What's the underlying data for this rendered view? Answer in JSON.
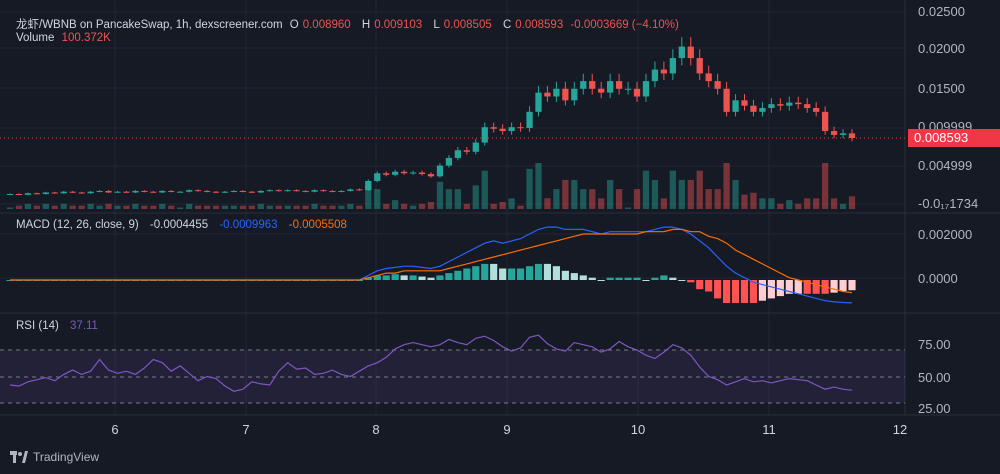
{
  "header": {
    "symbol": "龙虾/WBNB on PancakeSwap, 1h, dexscreener.com",
    "o_label": "O",
    "o_value": "0.008960",
    "h_label": "H",
    "h_value": "0.009103",
    "l_label": "L",
    "l_value": "0.008505",
    "c_label": "C",
    "c_value": "0.008593",
    "change": "-0.0003669 (−4.10%)",
    "volume_label": "Volume",
    "volume_value": "100.372K"
  },
  "macd": {
    "label": "MACD (12, 26, close, 9)",
    "hist_value": "-0.0004455",
    "macd_value": "-0.0009963",
    "signal_value": "-0.0005508"
  },
  "rsi": {
    "label": "RSI (14)",
    "value": "37.11"
  },
  "price_axis": [
    "0.02500",
    "0.02000",
    "0.01500",
    "0.009999",
    "0.004999",
    "-0.0₁₇1734"
  ],
  "current_price": "0.008593",
  "macd_axis": [
    "0.002000",
    "0.0000"
  ],
  "rsi_axis": [
    "75.00",
    "50.00",
    "25.00"
  ],
  "time_axis": [
    "6",
    "7",
    "8",
    "9",
    "10",
    "11",
    "12"
  ],
  "brand": "TradingView",
  "colors": {
    "up": "#26a69a",
    "down": "#ef5350",
    "macd_line": "#2962ff",
    "signal_line": "#ff6d00",
    "rsi_line": "#7e57c2",
    "price_tag": "#f23645"
  },
  "chart_data": [
    {
      "type": "candlestick",
      "title": "龙虾/WBNB on PancakeSwap, 1h, dexscreener.com",
      "x_labels": [
        "6",
        "7",
        "8",
        "9",
        "10",
        "11",
        "12"
      ],
      "ylim": [
        0,
        0.025
      ],
      "close": [
        0.0013,
        0.0012,
        0.0014,
        0.0013,
        0.0015,
        0.0014,
        0.0016,
        0.0015,
        0.0014,
        0.0016,
        0.0017,
        0.0015,
        0.0016,
        0.0015,
        0.0017,
        0.0016,
        0.0015,
        0.0017,
        0.0016,
        0.0016,
        0.0018,
        0.0017,
        0.0016,
        0.0015,
        0.0016,
        0.0017,
        0.0016,
        0.0015,
        0.0017,
        0.0018,
        0.0017,
        0.0018,
        0.0017,
        0.0016,
        0.0018,
        0.0017,
        0.0016,
        0.0017,
        0.0019,
        0.0018,
        0.003,
        0.004,
        0.0038,
        0.0042,
        0.004,
        0.0041,
        0.0039,
        0.0036,
        0.005,
        0.006,
        0.007,
        0.0068,
        0.008,
        0.01,
        0.0098,
        0.0095,
        0.01,
        0.0099,
        0.012,
        0.0145,
        0.014,
        0.015,
        0.0135,
        0.015,
        0.016,
        0.015,
        0.0145,
        0.016,
        0.015,
        0.015,
        0.014,
        0.016,
        0.0175,
        0.017,
        0.019,
        0.0205,
        0.019,
        0.017,
        0.016,
        0.015,
        0.012,
        0.0135,
        0.0128,
        0.012,
        0.0125,
        0.013,
        0.0128,
        0.0132,
        0.013,
        0.0125,
        0.012,
        0.0095,
        0.009,
        0.0092,
        0.008593
      ],
      "volume_peak": 100372
    },
    {
      "type": "line",
      "title": "MACD (12, 26, close, 9)",
      "ylim": [
        -0.0012,
        0.0028
      ],
      "series": [
        {
          "name": "MACD",
          "values": [
            0,
            0,
            0,
            0,
            0,
            0,
            0,
            0,
            0,
            0,
            0,
            0,
            0,
            0,
            0,
            0,
            0,
            0,
            0,
            0,
            0,
            0,
            0,
            0,
            0,
            0,
            0,
            0,
            0,
            0,
            0,
            0,
            0,
            0,
            0,
            0,
            0,
            0,
            0,
            0,
            0.0002,
            0.0004,
            0.0005,
            0.00055,
            0.0006,
            0.0006,
            0.00055,
            0.0005,
            0.0006,
            0.0008,
            0.001,
            0.0012,
            0.0014,
            0.0016,
            0.0017,
            0.0016,
            0.0017,
            0.0018,
            0.002,
            0.0022,
            0.0023,
            0.0023,
            0.0022,
            0.0022,
            0.0022,
            0.0021,
            0.002,
            0.0021,
            0.0021,
            0.0021,
            0.0021,
            0.0021,
            0.0022,
            0.0023,
            0.0023,
            0.0022,
            0.002,
            0.0017,
            0.0014,
            0.001,
            0.0006,
            0.0003,
            0.0001,
            -0.0001,
            -0.0002,
            -0.0003,
            -0.0004,
            -0.0005,
            -0.0006,
            -0.0007,
            -0.0008,
            -0.0009,
            -0.00095,
            -0.00098,
            -0.0009963
          ]
        },
        {
          "name": "Signal",
          "values": [
            0,
            0,
            0,
            0,
            0,
            0,
            0,
            0,
            0,
            0,
            0,
            0,
            0,
            0,
            0,
            0,
            0,
            0,
            0,
            0,
            0,
            0,
            0,
            0,
            0,
            0,
            0,
            0,
            0,
            0,
            0,
            0,
            0,
            0,
            0,
            0,
            0,
            0,
            0,
            0,
            0.0001,
            0.0002,
            0.0003,
            0.0003,
            0.0004,
            0.0004,
            0.0004,
            0.0004,
            0.0004,
            0.0005,
            0.0006,
            0.0007,
            0.0008,
            0.0009,
            0.001,
            0.0011,
            0.0012,
            0.0013,
            0.0014,
            0.0015,
            0.0016,
            0.0017,
            0.0018,
            0.0019,
            0.002,
            0.002,
            0.002,
            0.002,
            0.002,
            0.002,
            0.002,
            0.0021,
            0.0021,
            0.0021,
            0.0022,
            0.0022,
            0.0021,
            0.0021,
            0.0019,
            0.0018,
            0.0016,
            0.0013,
            0.0011,
            0.0009,
            0.0007,
            0.0005,
            0.0003,
            0.0001,
            0.0,
            -0.0001,
            -0.0002,
            -0.0003,
            -0.0004,
            -0.0005,
            -0.0005508
          ]
        }
      ]
    },
    {
      "type": "line",
      "title": "RSI (14)",
      "ylim": [
        20,
        85
      ],
      "series": [
        {
          "name": "RSI",
          "values": [
            42,
            41,
            45,
            47,
            49,
            46,
            52,
            56,
            52,
            55,
            66,
            56,
            53,
            55,
            52,
            58,
            66,
            63,
            55,
            60,
            53,
            46,
            50,
            48,
            41,
            36,
            38,
            45,
            43,
            42,
            55,
            63,
            57,
            58,
            52,
            53,
            56,
            52,
            50,
            55,
            60,
            63,
            68,
            76,
            80,
            82,
            80,
            78,
            80,
            85,
            82,
            80,
            86,
            88,
            84,
            78,
            74,
            77,
            87,
            89,
            81,
            76,
            74,
            82,
            80,
            78,
            73,
            76,
            83,
            78,
            75,
            70,
            67,
            73,
            80,
            77,
            70,
            59,
            50,
            47,
            42,
            45,
            48,
            45,
            46,
            44,
            46,
            48,
            47,
            46,
            42,
            38,
            40,
            38,
            37.11
          ]
        }
      ]
    }
  ]
}
